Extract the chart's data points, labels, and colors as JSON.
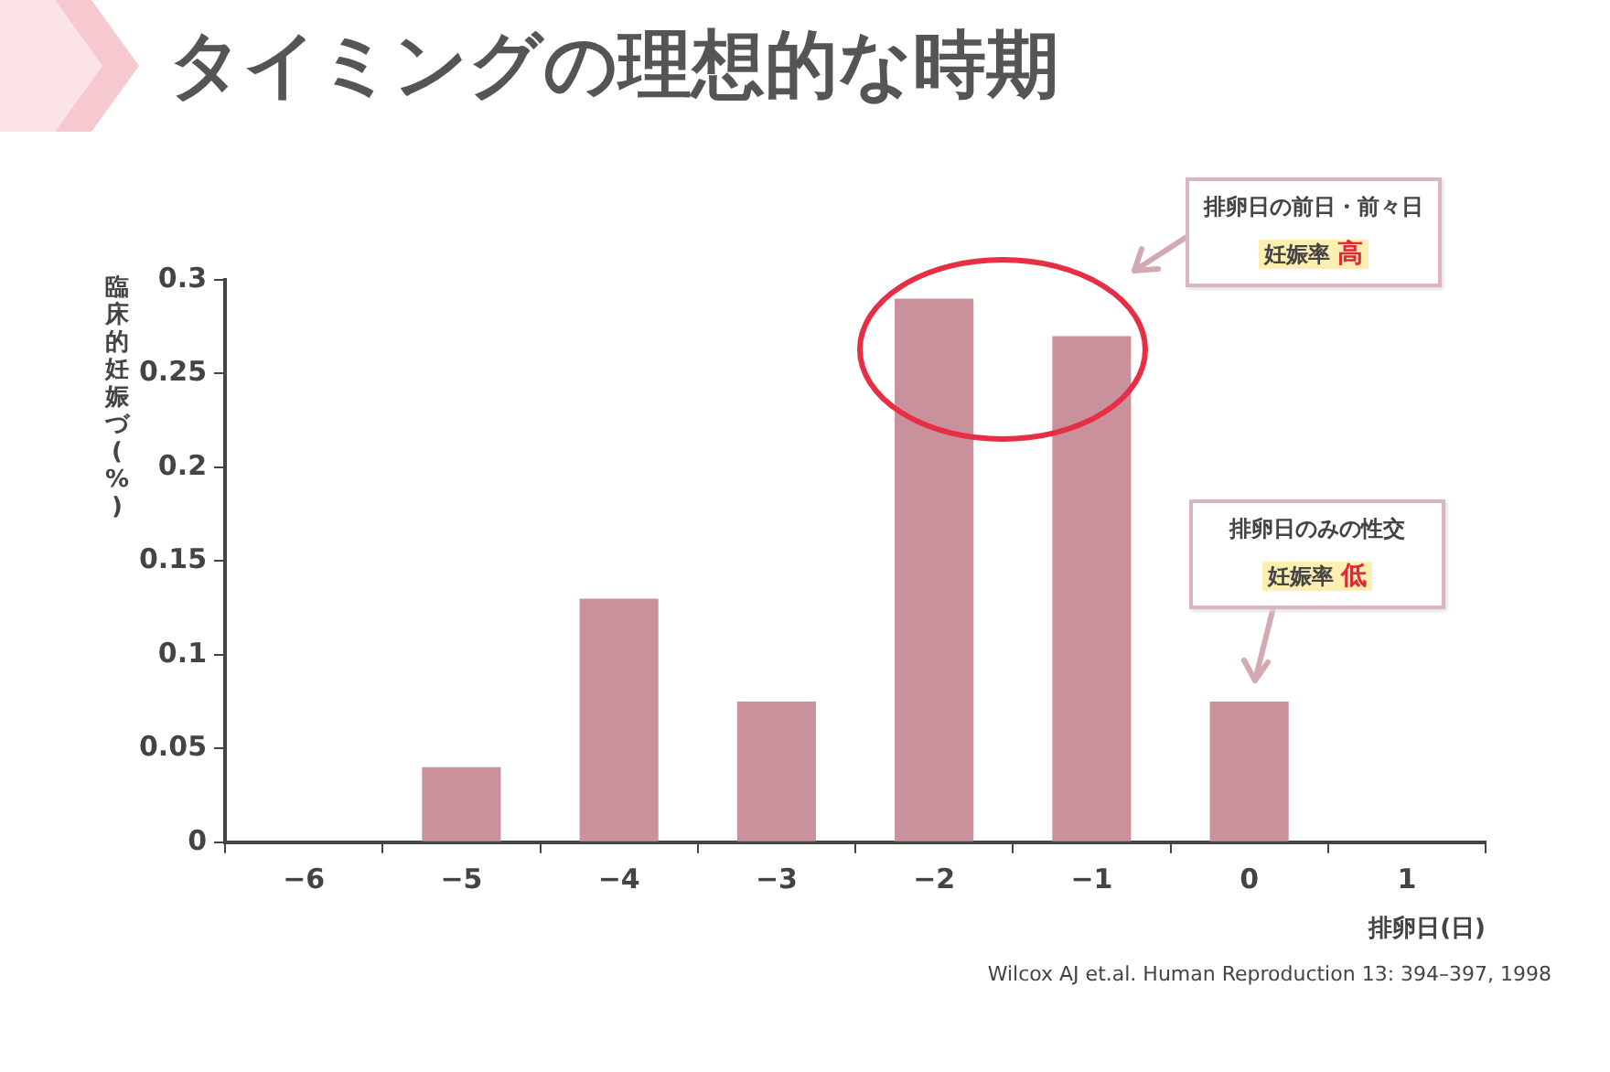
{
  "chart_data": {
    "type": "bar",
    "title": "タイミングの理想的な時期",
    "categories": [
      "−6",
      "−5",
      "−4",
      "−3",
      "−2",
      "−1",
      "0",
      "1"
    ],
    "values": [
      0,
      0.04,
      0.13,
      0.075,
      0.29,
      0.27,
      0.075,
      0
    ],
    "color": "#c9919c",
    "xlabel": "排卵日(日)",
    "ylabel": "臨床的妊娠づ(%)",
    "ylim": [
      0,
      0.3
    ],
    "yticks": [
      0,
      0.05,
      0.1,
      0.15,
      0.2,
      0.25,
      0.3
    ],
    "grid": false,
    "legend": false,
    "annotations": [
      "排卵日の前日・前々日",
      "妊娠率 高",
      "排卵日のみの性交",
      "妊娠率 低",
      "Wilcox AJ et.al. Human Reproduction 13: 394–397, 1998"
    ]
  }
}
